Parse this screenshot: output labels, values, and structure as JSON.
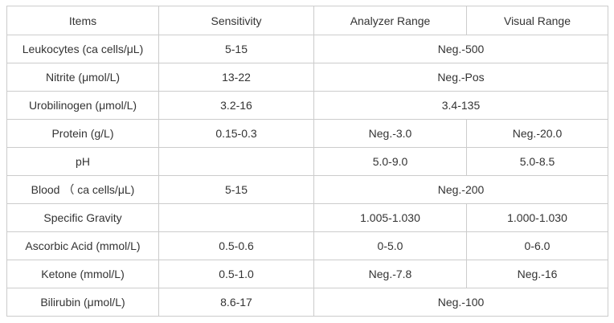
{
  "colors": {
    "border": "#cccccc",
    "text": "#333333",
    "background": "#ffffff"
  },
  "table": {
    "headers": [
      "Items",
      "Sensitivity",
      "Analyzer Range",
      "Visual Range"
    ],
    "rows": [
      {
        "item": "Leukocytes (ca cells/μL)",
        "sensitivity": "5-15",
        "merged": true,
        "analyzer": "Neg.-500",
        "visual": ""
      },
      {
        "item": "Nitrite (μmol/L)",
        "sensitivity": "13-22",
        "merged": true,
        "analyzer": "Neg.-Pos",
        "visual": ""
      },
      {
        "item": "Urobilinogen (μmol/L)",
        "sensitivity": "3.2-16",
        "merged": true,
        "analyzer": "3.4-135",
        "visual": ""
      },
      {
        "item": "Protein (g/L)",
        "sensitivity": "0.15-0.3",
        "merged": false,
        "analyzer": "Neg.-3.0",
        "visual": "Neg.-20.0"
      },
      {
        "item": "pH",
        "sensitivity": "",
        "merged": false,
        "analyzer": "5.0-9.0",
        "visual": "5.0-8.5"
      },
      {
        "item": "Blood （ ca cells/μL)",
        "sensitivity": "5-15",
        "merged": true,
        "analyzer": "Neg.-200",
        "visual": ""
      },
      {
        "item": "Specific Gravity",
        "sensitivity": "",
        "merged": false,
        "analyzer": "1.005-1.030",
        "visual": "1.000-1.030"
      },
      {
        "item": "Ascorbic Acid (mmol/L)",
        "sensitivity": "0.5-0.6",
        "merged": false,
        "analyzer": "0-5.0",
        "visual": "0-6.0"
      },
      {
        "item": "Ketone (mmol/L)",
        "sensitivity": "0.5-1.0",
        "merged": false,
        "analyzer": "Neg.-7.8",
        "visual": "Neg.-16"
      },
      {
        "item": "Bilirubin (μmol/L)",
        "sensitivity": "8.6-17",
        "merged": true,
        "analyzer": "Neg.-100",
        "visual": ""
      }
    ]
  }
}
